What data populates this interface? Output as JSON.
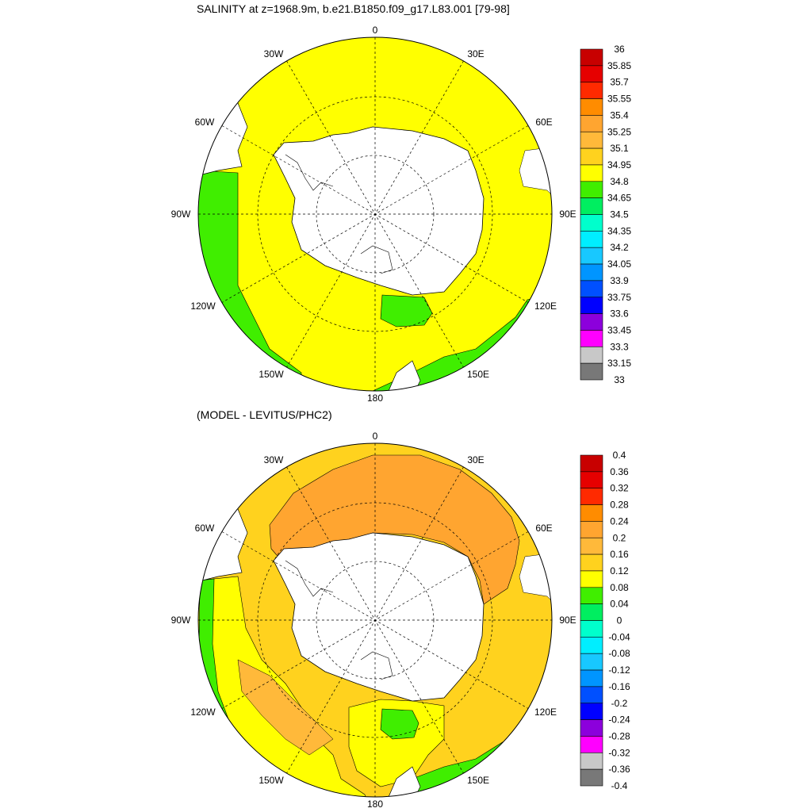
{
  "panels": [
    {
      "title": "SALINITY at z=1968.9m, b.e21.B1850.f09_g17.L83.001 [79-98]",
      "lon_labels": [
        "0",
        "30E",
        "60E",
        "90E",
        "120E",
        "150E",
        "180",
        "150W",
        "120W",
        "90W",
        "60W",
        "30W"
      ],
      "colorbar": {
        "labels": [
          "36",
          "35.85",
          "35.7",
          "35.55",
          "35.4",
          "35.25",
          "35.1",
          "34.95",
          "34.8",
          "34.65",
          "34.5",
          "34.35",
          "34.2",
          "34.05",
          "33.9",
          "33.75",
          "33.6",
          "33.45",
          "33.3",
          "33.15",
          "33"
        ],
        "colors": [
          "#c80000",
          "#e60000",
          "#ff2a00",
          "#ff8c00",
          "#ffa530",
          "#ffb93a",
          "#ffd21e",
          "#ffff00",
          "#40ee00",
          "#00ee60",
          "#00ffcc",
          "#00eeff",
          "#18c8ff",
          "#0095ff",
          "#0050ff",
          "#0000ff",
          "#8c00dc",
          "#ff00ff",
          "#c8c8c8",
          "#787878"
        ]
      }
    },
    {
      "title": "(MODEL - LEVITUS/PHC2)",
      "lon_labels": [
        "0",
        "30E",
        "60E",
        "90E",
        "120E",
        "150E",
        "180",
        "150W",
        "120W",
        "90W",
        "60W",
        "30W"
      ],
      "colorbar": {
        "labels": [
          "0.4",
          "0.36",
          "0.32",
          "0.28",
          "0.24",
          "0.2",
          "0.16",
          "0.12",
          "0.08",
          "0.04",
          "0",
          "-0.04",
          "-0.08",
          "-0.12",
          "-0.16",
          "-0.2",
          "-0.24",
          "-0.28",
          "-0.32",
          "-0.36",
          "-0.4"
        ],
        "colors": [
          "#c80000",
          "#e60000",
          "#ff2a00",
          "#ff8c00",
          "#ffa530",
          "#ffb93a",
          "#ffd21e",
          "#ffff00",
          "#40ee00",
          "#00ee60",
          "#00ffcc",
          "#00eeff",
          "#18c8ff",
          "#0095ff",
          "#0050ff",
          "#0000ff",
          "#8c00dc",
          "#ff00ff",
          "#c8c8c8",
          "#787878"
        ]
      }
    }
  ],
  "colors": {
    "land": "#ffffff",
    "grid": "#000000",
    "p1_ocean": "#ffff00",
    "p1_low": "#40ee00",
    "p2_high": "#ffa530",
    "p2_mid": "#ffd21e",
    "p2_low": "#ffff00",
    "p2_green": "#40ee00"
  }
}
